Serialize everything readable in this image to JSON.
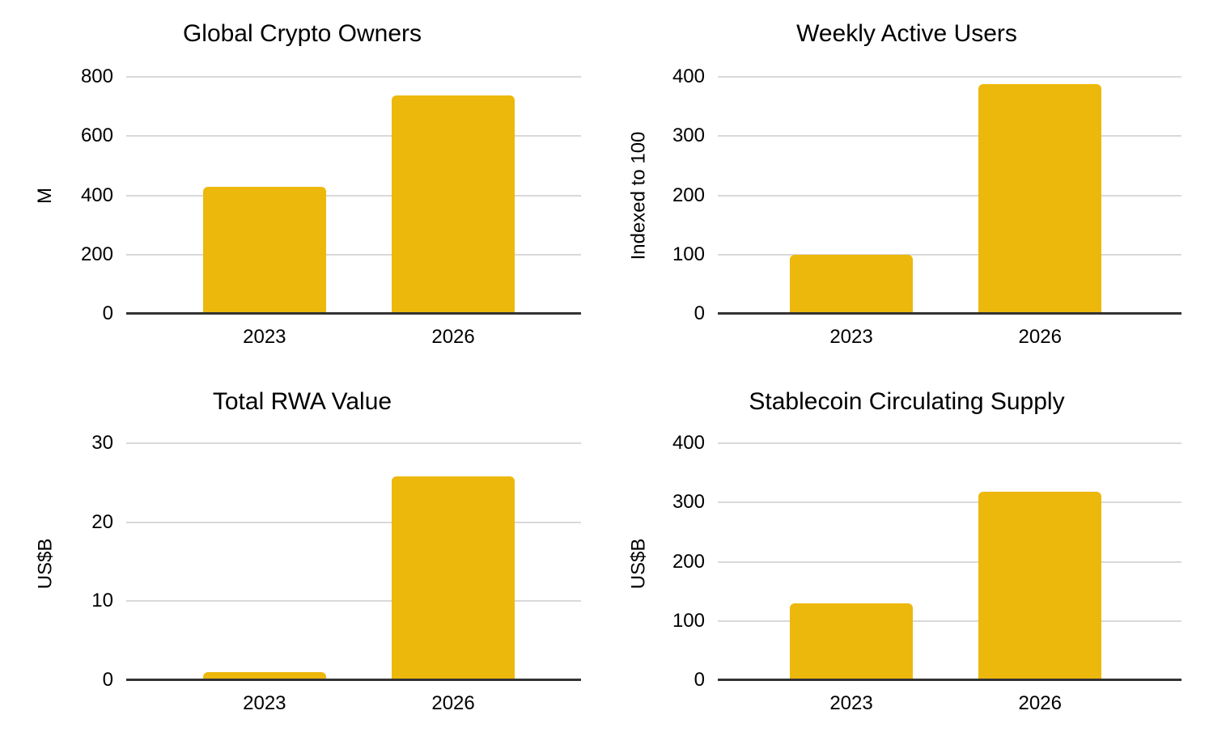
{
  "page": {
    "background": "#ffffff",
    "layout": "2x2 grid of bar charts"
  },
  "styles": {
    "bar_color": "#edb80c",
    "gridline_color": "#d9d9d9",
    "axis_color": "#333333",
    "text_color": "#000000"
  },
  "chart_data": [
    {
      "type": "bar",
      "title": "Global Crypto Owners",
      "ylabel": "M",
      "xlabel": "",
      "categories": [
        "2023",
        "2026"
      ],
      "values": [
        430,
        737
      ],
      "ylim": [
        0,
        800
      ],
      "yticks": [
        0,
        200,
        400,
        600,
        800
      ],
      "grid": true,
      "legend": "none"
    },
    {
      "type": "bar",
      "title": "Weekly Active Users",
      "ylabel": "Indexed to 100",
      "xlabel": "",
      "categories": [
        "2023",
        "2026"
      ],
      "values": [
        100,
        388
      ],
      "ylim": [
        0,
        400
      ],
      "yticks": [
        0,
        100,
        200,
        300,
        400
      ],
      "grid": true,
      "legend": "none"
    },
    {
      "type": "bar",
      "title": "Total RWA Value",
      "ylabel": "US$B",
      "xlabel": "",
      "categories": [
        "2023",
        "2026"
      ],
      "values": [
        1,
        25.8
      ],
      "ylim": [
        0,
        30
      ],
      "yticks": [
        0,
        10,
        20,
        30
      ],
      "grid": true,
      "legend": "none"
    },
    {
      "type": "bar",
      "title": "Stablecoin Circulating Supply",
      "ylabel": "US$B",
      "xlabel": "",
      "categories": [
        "2023",
        "2026"
      ],
      "values": [
        130,
        318
      ],
      "ylim": [
        0,
        400
      ],
      "yticks": [
        0,
        100,
        200,
        300,
        400
      ],
      "grid": true,
      "legend": "none"
    }
  ]
}
